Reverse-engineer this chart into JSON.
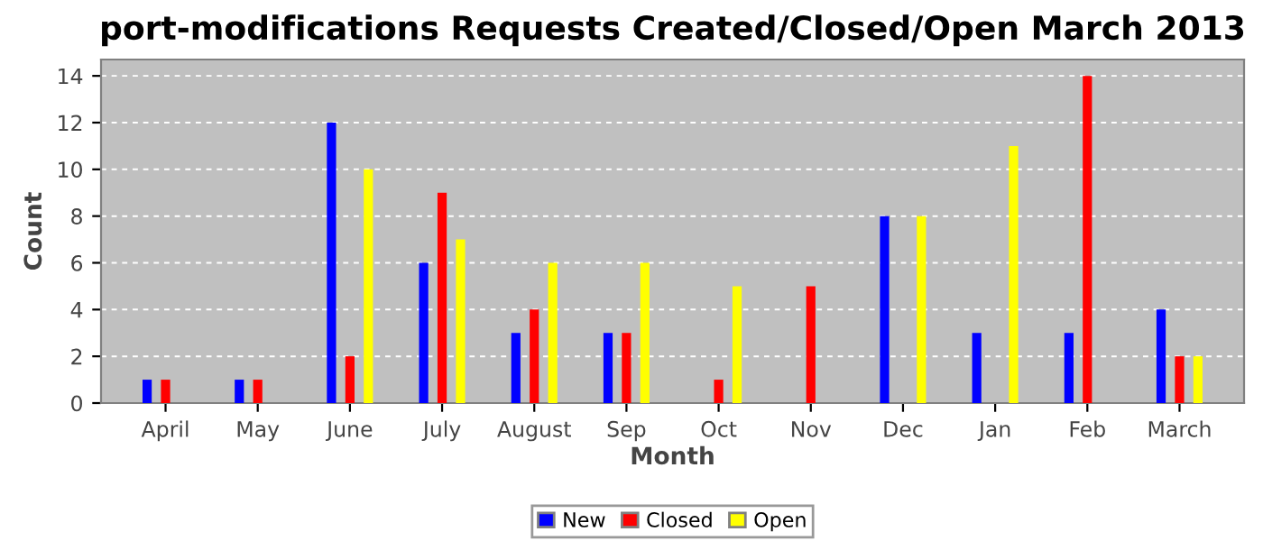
{
  "chart_data": {
    "type": "bar",
    "title": "port-modifications Requests Created/Closed/Open March 2013",
    "xlabel": "Month",
    "ylabel": "Count",
    "categories": [
      "April",
      "May",
      "June",
      "July",
      "August",
      "Sep",
      "Oct",
      "Nov",
      "Dec",
      "Jan",
      "Feb",
      "March"
    ],
    "series": [
      {
        "name": "New",
        "color": "#0000ff",
        "values": [
          1,
          1,
          12,
          6,
          3,
          3,
          0,
          0,
          8,
          3,
          3,
          4
        ]
      },
      {
        "name": "Closed",
        "color": "#ff0000",
        "values": [
          1,
          1,
          2,
          9,
          4,
          3,
          1,
          5,
          0,
          0,
          14,
          2
        ]
      },
      {
        "name": "Open",
        "color": "#ffff00",
        "values": [
          0,
          0,
          10,
          7,
          6,
          6,
          5,
          0,
          8,
          11,
          0,
          2
        ]
      }
    ],
    "ylim": [
      0,
      14.7
    ],
    "yticks": [
      0,
      2,
      4,
      6,
      8,
      10,
      12,
      14
    ],
    "grid": "y",
    "legend": "bottom"
  }
}
